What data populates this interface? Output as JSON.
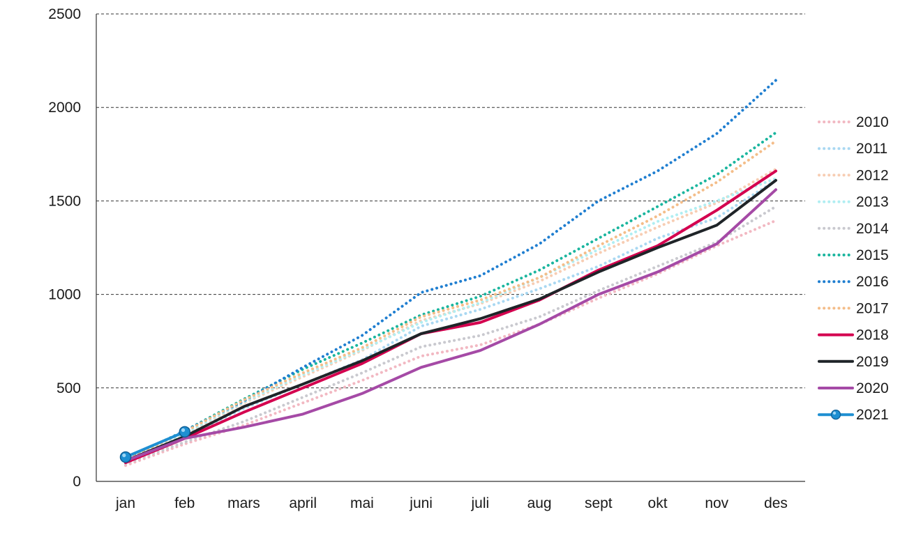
{
  "chart_data": {
    "type": "line",
    "title": "",
    "xlabel": "",
    "ylabel": "",
    "categories": [
      "jan",
      "feb",
      "mars",
      "april",
      "mai",
      "juni",
      "juli",
      "aug",
      "sept",
      "okt",
      "nov",
      "des"
    ],
    "ylim": [
      0,
      2500
    ],
    "yticks": [
      0,
      500,
      1000,
      1500,
      2000,
      2500
    ],
    "grid": "horizontal dashed",
    "legend": "right",
    "series": [
      {
        "name": "2010",
        "style": "dotted",
        "color": "#f2b8c2",
        "values": [
          85,
          200,
          300,
          420,
          540,
          670,
          730,
          840,
          980,
          1110,
          1260,
          1395
        ]
      },
      {
        "name": "2011",
        "style": "dotted",
        "color": "#a9d8f2",
        "values": [
          110,
          240,
          390,
          520,
          650,
          830,
          920,
          1030,
          1150,
          1300,
          1410,
          1610
        ]
      },
      {
        "name": "2012",
        "style": "dotted",
        "color": "#f7cdb3",
        "values": [
          105,
          250,
          420,
          560,
          700,
          860,
          950,
          1070,
          1220,
          1360,
          1490,
          1670
        ]
      },
      {
        "name": "2013",
        "style": "dotted",
        "color": "#b0eef2",
        "values": [
          110,
          255,
          425,
          570,
          705,
          850,
          955,
          1090,
          1240,
          1390,
          1500,
          1620
        ]
      },
      {
        "name": "2014",
        "style": "dotted",
        "color": "#c9c9cf",
        "values": [
          95,
          210,
          320,
          450,
          580,
          720,
          780,
          880,
          1020,
          1150,
          1280,
          1470
        ]
      },
      {
        "name": "2015",
        "style": "dotted",
        "color": "#1ab59e",
        "values": [
          120,
          270,
          440,
          600,
          740,
          890,
          990,
          1130,
          1300,
          1470,
          1640,
          1865
        ]
      },
      {
        "name": "2016",
        "style": "dotted",
        "color": "#1f7ed0",
        "values": [
          115,
          270,
          430,
          610,
          780,
          1010,
          1100,
          1270,
          1500,
          1660,
          1860,
          2145
        ]
      },
      {
        "name": "2017",
        "style": "dotted",
        "color": "#f4bd89",
        "values": [
          115,
          265,
          435,
          580,
          715,
          880,
          970,
          1090,
          1260,
          1420,
          1600,
          1820
        ]
      },
      {
        "name": "2018",
        "style": "solid",
        "color": "#d4004f",
        "values": [
          100,
          230,
          370,
          500,
          630,
          790,
          850,
          970,
          1130,
          1260,
          1450,
          1660
        ]
      },
      {
        "name": "2019",
        "style": "solid",
        "color": "#1f2428",
        "values": [
          110,
          240,
          400,
          520,
          645,
          790,
          870,
          975,
          1120,
          1250,
          1370,
          1610
        ]
      },
      {
        "name": "2020",
        "style": "solid",
        "color": "#a54aa6",
        "values": [
          110,
          230,
          290,
          360,
          470,
          610,
          700,
          840,
          1000,
          1120,
          1270,
          1560
        ]
      },
      {
        "name": "2021",
        "style": "solid-marker",
        "color": "#1e8fd2",
        "values": [
          130,
          265,
          null,
          null,
          null,
          null,
          null,
          null,
          null,
          null,
          null,
          null
        ]
      }
    ]
  }
}
